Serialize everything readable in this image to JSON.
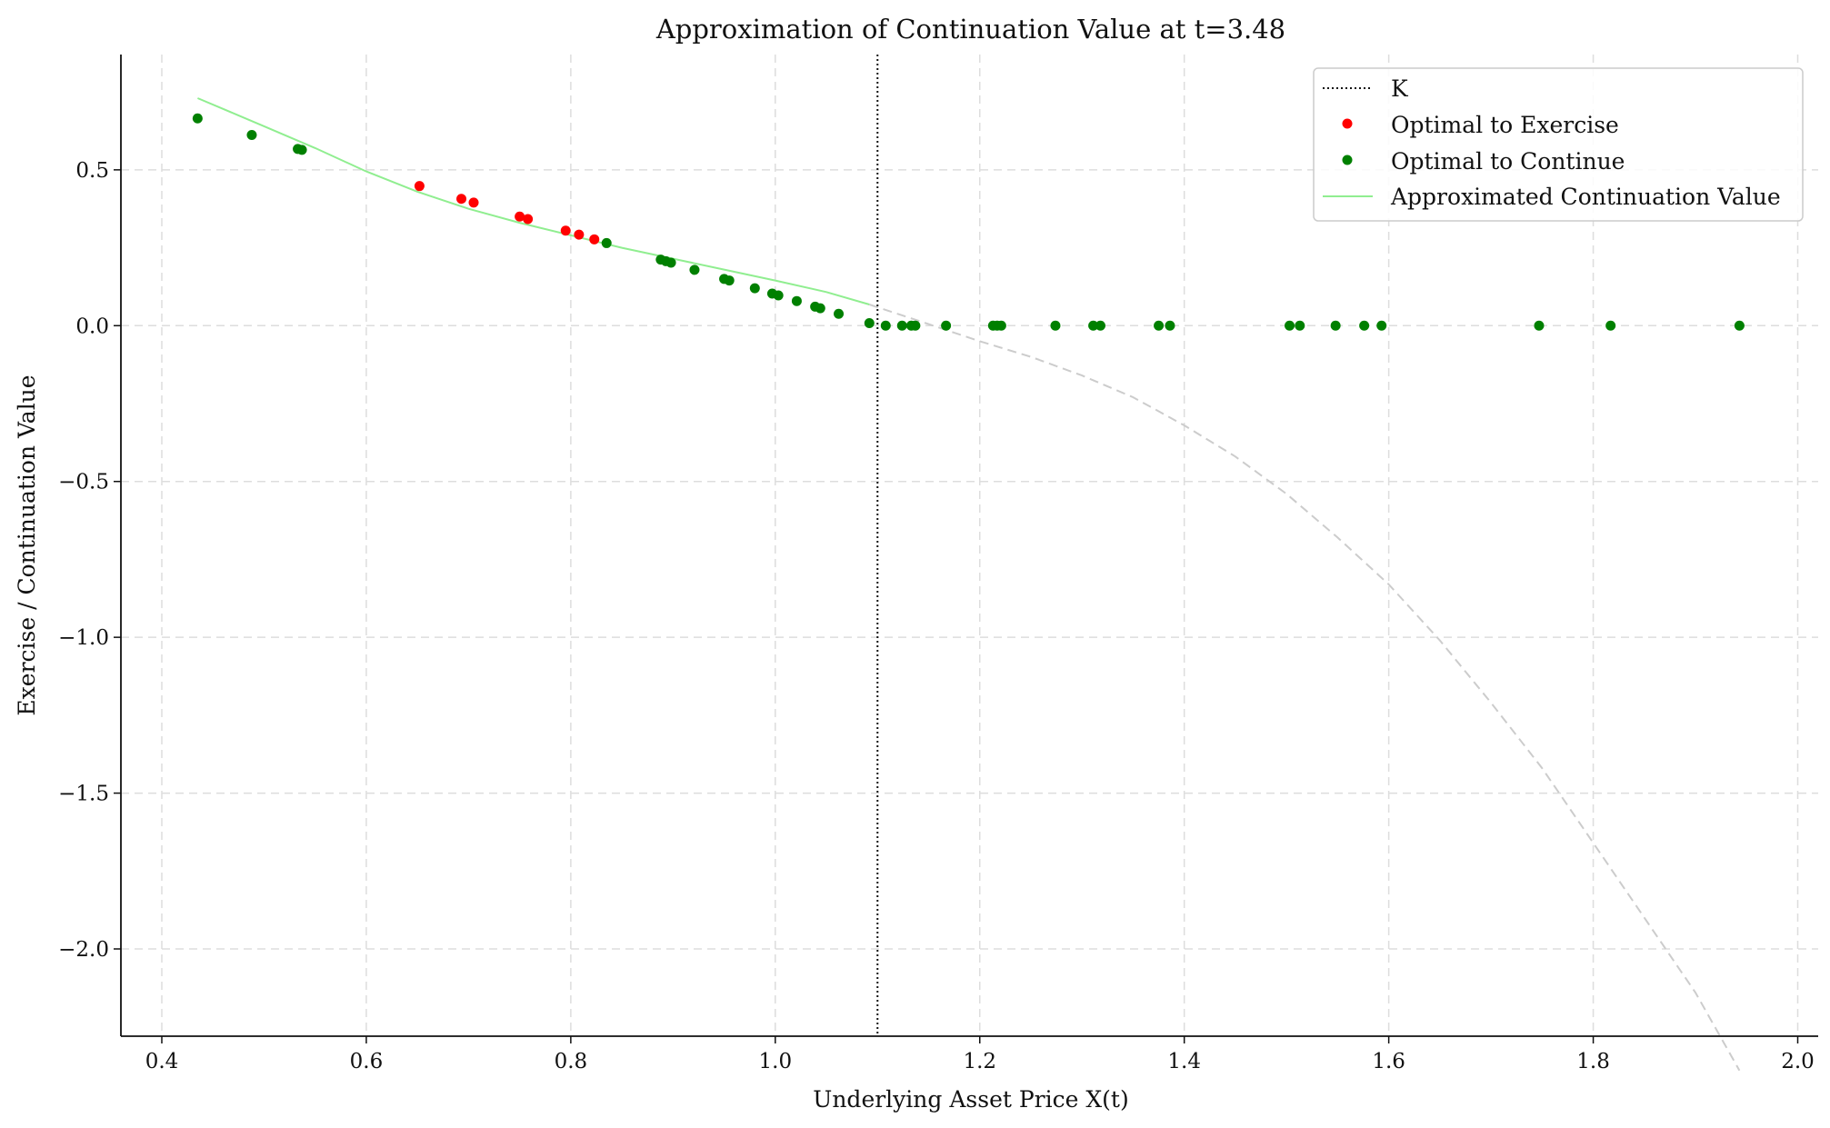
{
  "chart_data": {
    "type": "scatter",
    "title": "Approximation of Continuation Value at t=3.48",
    "xlabel": "Underlying Asset Price X(t)",
    "ylabel": "Exercise / Continuation Value",
    "xlim": [
      0.36,
      2.02
    ],
    "ylim": [
      -2.28,
      0.87
    ],
    "x_ticks": [
      0.4,
      0.6,
      0.8,
      1.0,
      1.2,
      1.4,
      1.6,
      1.8,
      2.0
    ],
    "x_tick_labels": [
      "0.4",
      "0.6",
      "0.8",
      "1.0",
      "1.2",
      "1.4",
      "1.6",
      "1.8",
      "2.0"
    ],
    "y_ticks": [
      0.5,
      0.0,
      -0.5,
      -1.0,
      -1.5,
      -2.0
    ],
    "y_tick_labels": [
      "0.5",
      "0.0",
      "−0.5",
      "−1.0",
      "−1.5",
      "−2.0"
    ],
    "grid": true,
    "legend_position": "upper right",
    "strike": {
      "name": "K",
      "x": 1.1,
      "style": "dotted",
      "color": "#111111"
    },
    "series": [
      {
        "name": "Optimal to Exercise",
        "kind": "points",
        "color": "#ff0000",
        "points": [
          [
            0.652,
            0.448
          ],
          [
            0.693,
            0.407
          ],
          [
            0.705,
            0.395
          ],
          [
            0.75,
            0.35
          ],
          [
            0.758,
            0.342
          ],
          [
            0.795,
            0.305
          ],
          [
            0.808,
            0.292
          ],
          [
            0.823,
            0.277
          ]
        ]
      },
      {
        "name": "Optimal to Continue",
        "kind": "points",
        "color": "#008000",
        "points": [
          [
            0.435,
            0.665
          ],
          [
            0.488,
            0.612
          ],
          [
            0.533,
            0.567
          ],
          [
            0.537,
            0.564
          ],
          [
            0.835,
            0.265
          ],
          [
            0.888,
            0.212
          ],
          [
            0.893,
            0.207
          ],
          [
            0.898,
            0.202
          ],
          [
            0.921,
            0.179
          ],
          [
            0.95,
            0.15
          ],
          [
            0.955,
            0.145
          ],
          [
            0.98,
            0.12
          ],
          [
            0.997,
            0.103
          ],
          [
            1.003,
            0.097
          ],
          [
            1.021,
            0.079
          ],
          [
            1.039,
            0.061
          ],
          [
            1.044,
            0.056
          ],
          [
            1.062,
            0.038
          ],
          [
            1.092,
            0.008
          ],
          [
            1.108,
            0.0
          ],
          [
            1.124,
            0.0
          ],
          [
            1.133,
            0.0
          ],
          [
            1.137,
            0.0
          ],
          [
            1.167,
            0.0
          ],
          [
            1.213,
            0.0
          ],
          [
            1.217,
            0.0
          ],
          [
            1.221,
            0.0
          ],
          [
            1.274,
            0.0
          ],
          [
            1.311,
            0.0
          ],
          [
            1.318,
            0.0
          ],
          [
            1.375,
            0.0
          ],
          [
            1.386,
            0.0
          ],
          [
            1.503,
            0.0
          ],
          [
            1.513,
            0.0
          ],
          [
            1.548,
            0.0
          ],
          [
            1.576,
            0.0
          ],
          [
            1.593,
            0.0
          ],
          [
            1.747,
            0.0
          ],
          [
            1.817,
            0.0
          ],
          [
            1.943,
            0.0
          ]
        ]
      },
      {
        "name": "Approximated Continuation Value",
        "kind": "line",
        "color": "#90ee90",
        "points": [
          [
            0.435,
            0.73
          ],
          [
            0.5,
            0.64
          ],
          [
            0.55,
            0.57
          ],
          [
            0.6,
            0.495
          ],
          [
            0.65,
            0.43
          ],
          [
            0.7,
            0.375
          ],
          [
            0.75,
            0.33
          ],
          [
            0.8,
            0.29
          ],
          [
            0.85,
            0.25
          ],
          [
            0.9,
            0.215
          ],
          [
            0.95,
            0.18
          ],
          [
            1.0,
            0.145
          ],
          [
            1.05,
            0.108
          ],
          [
            1.092,
            0.068
          ]
        ]
      },
      {
        "kind": "dashed-extension",
        "color": "#cccccc",
        "points": [
          [
            1.092,
            0.068
          ],
          [
            1.15,
            0.005
          ],
          [
            1.2,
            -0.05
          ],
          [
            1.25,
            -0.1
          ],
          [
            1.3,
            -0.16
          ],
          [
            1.35,
            -0.23
          ],
          [
            1.4,
            -0.32
          ],
          [
            1.45,
            -0.42
          ],
          [
            1.5,
            -0.54
          ],
          [
            1.55,
            -0.68
          ],
          [
            1.6,
            -0.83
          ],
          [
            1.65,
            -1.01
          ],
          [
            1.7,
            -1.21
          ],
          [
            1.75,
            -1.42
          ],
          [
            1.8,
            -1.66
          ],
          [
            1.85,
            -1.9
          ],
          [
            1.9,
            -2.14
          ],
          [
            1.943,
            -2.39
          ]
        ]
      }
    ]
  }
}
